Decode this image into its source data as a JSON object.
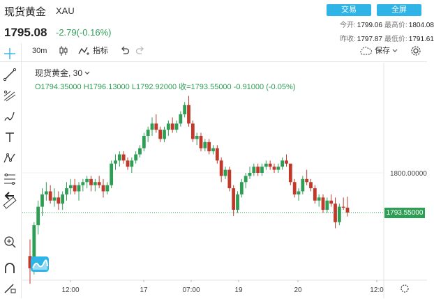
{
  "header": {
    "title": "现货黄金",
    "code": "XAU",
    "price": "1795.08",
    "change": "-2.79(-0.16%)",
    "trade_btn": "交易",
    "fullscreen_btn": "全屏",
    "quotes": {
      "open_label": "今开:",
      "open": "1799.06",
      "high_label": "最高价:",
      "high": "1804.08",
      "prev_label": "昨收:",
      "prev": "1797.87",
      "low_label": "最低价:",
      "low": "1791.61"
    }
  },
  "toolbar": {
    "interval": "30m",
    "indicators": "指标",
    "save": "保存"
  },
  "legend": {
    "symbol_line": "现货黄金, 30",
    "ohlc": "O1794.35000  H1796.13000  L1792.92000  收=1793.55000  -0.91000 (-0.05%)"
  },
  "price_tag": "1793.55000",
  "colors": {
    "up": "#2e9e55",
    "down": "#c0392b",
    "accent": "#2eb4e6"
  },
  "chart_data": {
    "type": "candlestick",
    "title": "现货黄金, 30",
    "x_ticks": [
      "12:00",
      "17",
      "07:00",
      "19",
      "20",
      "12:0"
    ],
    "y_ticks": [
      1800.0
    ],
    "y_tick_labels": [
      "1800.00000"
    ],
    "last_price": 1793.55,
    "ohlc": [
      [
        1786.5,
        1789.2,
        1782.0,
        1784.5
      ],
      [
        1784.5,
        1792.0,
        1783.5,
        1791.5
      ],
      [
        1791.5,
        1795.5,
        1790.0,
        1794.5
      ],
      [
        1794.5,
        1797.5,
        1793.0,
        1796.5
      ],
      [
        1796.5,
        1798.5,
        1795.5,
        1797.0
      ],
      [
        1797.0,
        1798.0,
        1795.0,
        1795.5
      ],
      [
        1795.5,
        1797.5,
        1794.5,
        1796.0
      ],
      [
        1796.0,
        1797.0,
        1794.0,
        1795.0
      ],
      [
        1795.0,
        1797.0,
        1794.0,
        1796.5
      ],
      [
        1796.5,
        1798.5,
        1795.5,
        1797.5
      ],
      [
        1797.5,
        1799.0,
        1796.5,
        1798.0
      ],
      [
        1798.0,
        1799.0,
        1796.5,
        1797.0
      ],
      [
        1797.0,
        1798.5,
        1795.5,
        1798.0
      ],
      [
        1798.0,
        1799.0,
        1797.0,
        1798.5
      ],
      [
        1798.5,
        1799.5,
        1797.5,
        1799.0
      ],
      [
        1799.0,
        1799.5,
        1797.0,
        1798.0
      ],
      [
        1798.0,
        1799.0,
        1797.0,
        1798.5
      ],
      [
        1798.5,
        1799.5,
        1797.5,
        1798.0
      ],
      [
        1798.0,
        1799.0,
        1796.0,
        1797.0
      ],
      [
        1797.0,
        1798.5,
        1796.5,
        1798.0
      ],
      [
        1798.0,
        1802.0,
        1797.5,
        1801.5
      ],
      [
        1801.5,
        1803.0,
        1800.5,
        1802.0
      ],
      [
        1802.0,
        1803.5,
        1801.0,
        1803.0
      ],
      [
        1803.0,
        1803.5,
        1801.5,
        1802.0
      ],
      [
        1802.0,
        1802.5,
        1800.5,
        1801.0
      ],
      [
        1801.0,
        1802.5,
        1800.0,
        1802.0
      ],
      [
        1802.0,
        1803.5,
        1801.5,
        1803.0
      ],
      [
        1803.0,
        1804.5,
        1802.5,
        1804.0
      ],
      [
        1804.0,
        1806.5,
        1803.5,
        1806.0
      ],
      [
        1806.0,
        1807.5,
        1805.0,
        1807.0
      ],
      [
        1807.0,
        1809.0,
        1806.0,
        1808.0
      ],
      [
        1808.0,
        1809.5,
        1806.5,
        1807.0
      ],
      [
        1807.0,
        1807.5,
        1805.0,
        1805.5
      ],
      [
        1805.5,
        1807.5,
        1805.0,
        1807.0
      ],
      [
        1807.0,
        1808.5,
        1806.0,
        1808.0
      ],
      [
        1808.0,
        1809.0,
        1806.5,
        1807.0
      ],
      [
        1807.0,
        1808.5,
        1806.5,
        1808.0
      ],
      [
        1808.0,
        1810.0,
        1807.5,
        1809.5
      ],
      [
        1809.5,
        1811.5,
        1809.0,
        1811.0
      ],
      [
        1811.0,
        1812.5,
        1807.5,
        1808.0
      ],
      [
        1808.0,
        1808.5,
        1805.0,
        1805.5
      ],
      [
        1805.5,
        1806.5,
        1804.5,
        1806.0
      ],
      [
        1806.0,
        1806.5,
        1803.5,
        1804.0
      ],
      [
        1804.0,
        1805.5,
        1803.5,
        1805.0
      ],
      [
        1805.0,
        1805.5,
        1803.0,
        1803.5
      ],
      [
        1803.5,
        1804.5,
        1803.0,
        1804.0
      ],
      [
        1804.0,
        1804.5,
        1801.5,
        1802.0
      ],
      [
        1802.0,
        1802.5,
        1798.5,
        1799.5
      ],
      [
        1799.5,
        1801.0,
        1799.0,
        1800.5
      ],
      [
        1800.5,
        1801.0,
        1797.0,
        1797.5
      ],
      [
        1797.5,
        1798.0,
        1793.0,
        1794.0
      ],
      [
        1794.0,
        1797.0,
        1793.5,
        1796.5
      ],
      [
        1796.5,
        1799.0,
        1796.0,
        1798.5
      ],
      [
        1798.5,
        1800.0,
        1797.5,
        1799.5
      ],
      [
        1799.5,
        1801.0,
        1799.0,
        1800.0
      ],
      [
        1800.0,
        1801.5,
        1799.5,
        1801.0
      ],
      [
        1801.0,
        1801.5,
        1799.5,
        1800.0
      ],
      [
        1800.0,
        1801.5,
        1799.5,
        1801.0
      ],
      [
        1801.0,
        1802.0,
        1800.5,
        1801.5
      ],
      [
        1801.5,
        1802.0,
        1800.5,
        1801.0
      ],
      [
        1801.0,
        1801.5,
        1800.0,
        1800.5
      ],
      [
        1800.5,
        1801.5,
        1800.0,
        1801.0
      ],
      [
        1801.0,
        1802.5,
        1800.5,
        1802.0
      ],
      [
        1802.0,
        1803.0,
        1801.0,
        1801.5
      ],
      [
        1801.5,
        1801.5,
        1798.0,
        1798.5
      ],
      [
        1798.5,
        1799.0,
        1796.0,
        1796.5
      ],
      [
        1796.5,
        1797.5,
        1795.5,
        1797.0
      ],
      [
        1797.0,
        1799.5,
        1796.5,
        1799.0
      ],
      [
        1799.0,
        1800.5,
        1798.0,
        1798.5
      ],
      [
        1798.5,
        1799.0,
        1797.0,
        1797.5
      ],
      [
        1797.5,
        1798.0,
        1795.0,
        1795.5
      ],
      [
        1795.5,
        1796.5,
        1794.5,
        1796.0
      ],
      [
        1796.0,
        1796.5,
        1793.5,
        1794.0
      ],
      [
        1794.0,
        1796.0,
        1793.5,
        1795.5
      ],
      [
        1795.5,
        1796.5,
        1794.5,
        1795.0
      ],
      [
        1795.0,
        1796.0,
        1791.0,
        1792.0
      ],
      [
        1792.0,
        1795.0,
        1791.5,
        1794.5
      ],
      [
        1794.5,
        1796.0,
        1794.0,
        1794.35
      ],
      [
        1794.35,
        1796.13,
        1792.92,
        1793.55
      ]
    ]
  }
}
